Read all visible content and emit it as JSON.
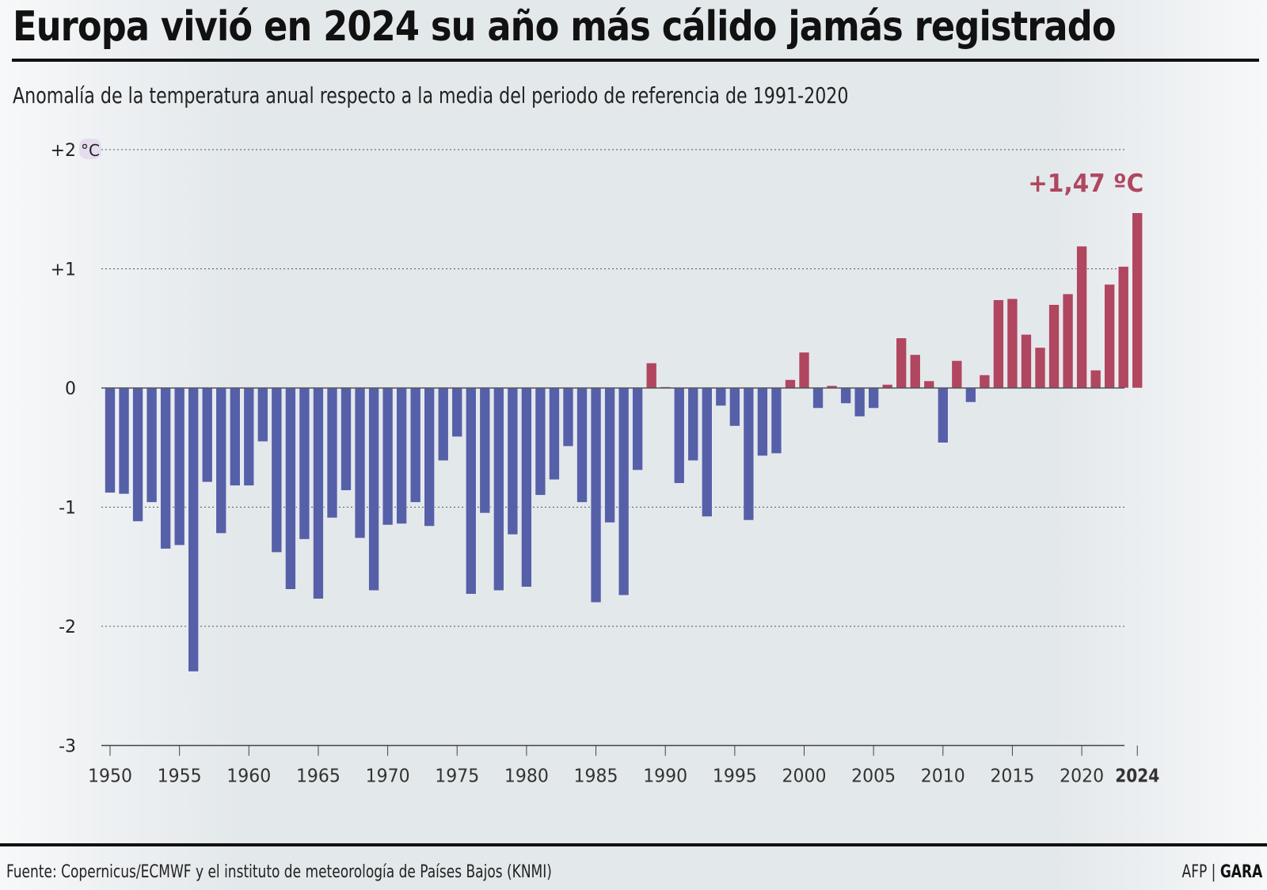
{
  "header": {
    "title": "Europa vivió en 2024 su año más cálido jamás registrado",
    "subtitle": "Anomalía de la temperatura anual respecto a la media del periodo de referencia de 1991-2020"
  },
  "footer": {
    "source": "Fuente: Copernicus/ECMWF y el instituto de meteorología de Países Bajos (KNMI)",
    "credit_agency": "AFP",
    "credit_separator": "|",
    "credit_outlet": "GARA"
  },
  "colors": {
    "positive": "#b0465f",
    "negative": "#5660a8",
    "highlight_label": "#b0465f",
    "unit_badge": "#e6dcef"
  },
  "chart_data": {
    "type": "bar",
    "title": "Europa vivió en 2024 su año más cálido jamás registrado",
    "subtitle": "Anomalía de la temperatura anual respecto a la media del periodo de referencia de 1991-2020",
    "xlabel": "",
    "ylabel": "°C",
    "unit": "°C",
    "ylim": [
      -3,
      2
    ],
    "grid": true,
    "y_ticks": [
      {
        "value": 2,
        "label": "+2"
      },
      {
        "value": 1,
        "label": "+1"
      },
      {
        "value": 0,
        "label": "0"
      },
      {
        "value": -1,
        "label": "-1"
      },
      {
        "value": -2,
        "label": "-2"
      },
      {
        "value": -3,
        "label": "-3"
      }
    ],
    "x_ticks": [
      1950,
      1955,
      1960,
      1965,
      1970,
      1975,
      1980,
      1985,
      1990,
      1995,
      2000,
      2005,
      2010,
      2015,
      2020,
      2024
    ],
    "highlight_year": 2024,
    "annotation": {
      "year": 2024,
      "text": "+1,47 ºC"
    },
    "categories": [
      1950,
      1951,
      1952,
      1953,
      1954,
      1955,
      1956,
      1957,
      1958,
      1959,
      1960,
      1961,
      1962,
      1963,
      1964,
      1965,
      1966,
      1967,
      1968,
      1969,
      1970,
      1971,
      1972,
      1973,
      1974,
      1975,
      1976,
      1977,
      1978,
      1979,
      1980,
      1981,
      1982,
      1983,
      1984,
      1985,
      1986,
      1987,
      1988,
      1989,
      1990,
      1991,
      1992,
      1993,
      1994,
      1995,
      1996,
      1997,
      1998,
      1999,
      2000,
      2001,
      2002,
      2003,
      2004,
      2005,
      2006,
      2007,
      2008,
      2009,
      2010,
      2011,
      2012,
      2013,
      2014,
      2015,
      2016,
      2017,
      2018,
      2019,
      2020,
      2021,
      2022,
      2023,
      2024
    ],
    "values": [
      -0.88,
      -0.89,
      -1.12,
      -0.96,
      -1.35,
      -1.32,
      -2.38,
      -0.79,
      -1.22,
      -0.82,
      -0.82,
      -0.45,
      -1.38,
      -1.69,
      -1.27,
      -1.77,
      -1.09,
      -0.86,
      -1.26,
      -1.7,
      -1.15,
      -1.14,
      -0.96,
      -1.16,
      -0.61,
      -0.41,
      -1.73,
      -1.05,
      -1.7,
      -1.23,
      -1.67,
      -0.9,
      -0.77,
      -0.49,
      -0.96,
      -1.8,
      -1.13,
      -1.74,
      -0.69,
      0.21,
      0.01,
      -0.8,
      -0.61,
      -1.08,
      -0.15,
      -0.32,
      -1.11,
      -0.57,
      -0.55,
      0.07,
      0.3,
      -0.17,
      0.02,
      -0.13,
      -0.24,
      -0.17,
      0.03,
      0.42,
      0.28,
      0.06,
      -0.46,
      0.23,
      -0.12,
      0.11,
      0.74,
      0.75,
      0.45,
      0.34,
      0.7,
      0.79,
      1.19,
      0.15,
      0.87,
      1.02,
      1.47
    ]
  }
}
